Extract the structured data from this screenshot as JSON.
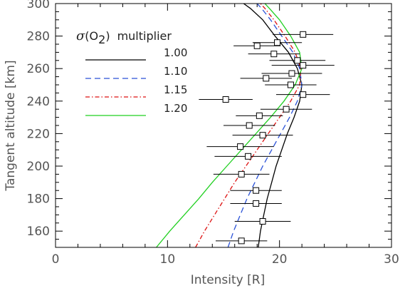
{
  "chart_data": {
    "type": "line",
    "xlabel": "Intensity [R]",
    "ylabel": "Tangent altitude [km]",
    "xlim": [
      0,
      30
    ],
    "ylim": [
      150,
      300
    ],
    "x_ticks": [
      0,
      10,
      20,
      30
    ],
    "y_ticks": [
      160,
      180,
      200,
      220,
      240,
      260,
      280,
      300
    ],
    "legend_title": {
      "symbol": "σ",
      "open": "(O",
      "sub": "2",
      "close": ")",
      "suffix": "multiplier"
    },
    "legend_placement": "upper-left",
    "series": [
      {
        "name": "1.00",
        "color": "#000000",
        "dash": "solid",
        "points": [
          [
            18.1,
            150
          ],
          [
            18.3,
            160
          ],
          [
            18.6,
            170
          ],
          [
            18.9,
            180
          ],
          [
            19.3,
            190
          ],
          [
            19.7,
            200
          ],
          [
            20.2,
            210
          ],
          [
            20.7,
            220
          ],
          [
            21.3,
            230
          ],
          [
            21.8,
            240
          ],
          [
            22.0,
            250
          ],
          [
            21.6,
            260
          ],
          [
            20.8,
            270
          ],
          [
            19.6,
            280
          ],
          [
            18.5,
            290
          ],
          [
            17.4,
            297
          ],
          [
            16.8,
            300
          ]
        ]
      },
      {
        "name": "1.10",
        "color": "#2a52d8",
        "dash": "8,5",
        "points": [
          [
            15.4,
            150
          ],
          [
            15.9,
            160
          ],
          [
            16.5,
            170
          ],
          [
            17.1,
            180
          ],
          [
            17.8,
            190
          ],
          [
            18.5,
            200
          ],
          [
            19.3,
            210
          ],
          [
            20.1,
            220
          ],
          [
            20.9,
            230
          ],
          [
            21.6,
            240
          ],
          [
            22.0,
            250
          ],
          [
            21.8,
            260
          ],
          [
            21.2,
            270
          ],
          [
            20.2,
            280
          ],
          [
            19.2,
            290
          ],
          [
            18.4,
            297
          ],
          [
            18.0,
            300
          ]
        ]
      },
      {
        "name": "1.15",
        "color": "#dd1111",
        "dash": "6,3,1.5,3",
        "points": [
          [
            12.5,
            150
          ],
          [
            13.3,
            160
          ],
          [
            14.2,
            170
          ],
          [
            15.1,
            180
          ],
          [
            16.0,
            190
          ],
          [
            17.0,
            200
          ],
          [
            18.0,
            210
          ],
          [
            19.0,
            220
          ],
          [
            20.0,
            230
          ],
          [
            21.0,
            240
          ],
          [
            21.8,
            250
          ],
          [
            21.9,
            260
          ],
          [
            21.4,
            270
          ],
          [
            20.5,
            280
          ],
          [
            19.5,
            290
          ],
          [
            18.7,
            297
          ],
          [
            18.3,
            300
          ]
        ]
      },
      {
        "name": "1.20",
        "color": "#22d022",
        "dash": "solid",
        "points": [
          [
            9.0,
            150
          ],
          [
            10.2,
            160
          ],
          [
            11.5,
            170
          ],
          [
            12.8,
            180
          ],
          [
            14.0,
            190
          ],
          [
            15.3,
            200
          ],
          [
            16.6,
            210
          ],
          [
            17.9,
            220
          ],
          [
            19.2,
            230
          ],
          [
            20.4,
            240
          ],
          [
            21.4,
            250
          ],
          [
            22.0,
            260
          ],
          [
            21.8,
            270
          ],
          [
            21.0,
            280
          ],
          [
            20.0,
            290
          ],
          [
            19.1,
            297
          ],
          [
            18.7,
            300
          ]
        ]
      }
    ],
    "observations": {
      "name": "",
      "marker": "open-square",
      "points": [
        {
          "x": 22.1,
          "y": 281,
          "xerr": 2.7
        },
        {
          "x": 19.8,
          "y": 276,
          "xerr": 2.2
        },
        {
          "x": 18.0,
          "y": 274,
          "xerr": 2.1
        },
        {
          "x": 19.5,
          "y": 269,
          "xerr": 2.3
        },
        {
          "x": 21.6,
          "y": 265,
          "xerr": 2.5
        },
        {
          "x": 22.1,
          "y": 262,
          "xerr": 2.8
        },
        {
          "x": 21.1,
          "y": 257,
          "xerr": 2.7
        },
        {
          "x": 18.8,
          "y": 254,
          "xerr": 2.3
        },
        {
          "x": 21.0,
          "y": 250,
          "xerr": 2.3
        },
        {
          "x": 22.1,
          "y": 244,
          "xerr": 2.4
        },
        {
          "x": 15.2,
          "y": 241,
          "xerr": 2.4
        },
        {
          "x": 20.6,
          "y": 235,
          "xerr": 2.3
        },
        {
          "x": 18.2,
          "y": 231,
          "xerr": 2.1
        },
        {
          "x": 17.3,
          "y": 225,
          "xerr": 2.3
        },
        {
          "x": 18.5,
          "y": 219,
          "xerr": 2.7
        },
        {
          "x": 16.5,
          "y": 212,
          "xerr": 3.0
        },
        {
          "x": 17.2,
          "y": 206,
          "xerr": 3.0
        },
        {
          "x": 16.6,
          "y": 195,
          "xerr": 2.5
        },
        {
          "x": 17.9,
          "y": 185,
          "xerr": 2.3
        },
        {
          "x": 17.9,
          "y": 177,
          "xerr": 2.3
        },
        {
          "x": 18.5,
          "y": 166,
          "xerr": 2.5
        },
        {
          "x": 16.6,
          "y": 154,
          "xerr": 2.3
        }
      ]
    }
  }
}
